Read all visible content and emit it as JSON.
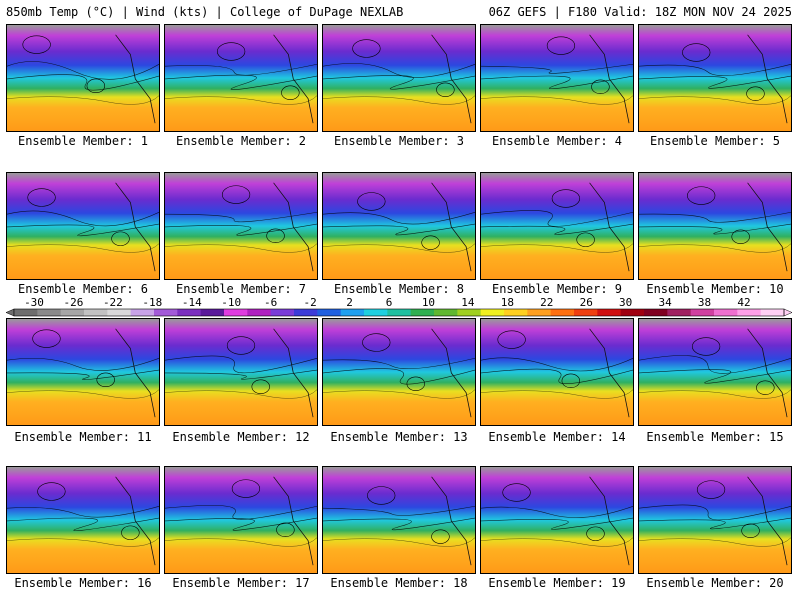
{
  "header": {
    "left": "850mb Temp (°C) | Wind (kts) | College of DuPage NEXLAB",
    "right": "06Z GEFS | F180 Valid: 18Z MON NOV 24 2025"
  },
  "members": [
    "Ensemble Member: 1",
    "Ensemble Member: 2",
    "Ensemble Member: 3",
    "Ensemble Member: 4",
    "Ensemble Member: 5",
    "Ensemble Member: 6",
    "Ensemble Member: 7",
    "Ensemble Member: 8",
    "Ensemble Member: 9",
    "Ensemble Member: 10",
    "Ensemble Member: 11",
    "Ensemble Member: 12",
    "Ensemble Member: 13",
    "Ensemble Member: 14",
    "Ensemble Member: 15",
    "Ensemble Member: 16",
    "Ensemble Member: 17",
    "Ensemble Member: 18",
    "Ensemble Member: 19",
    "Ensemble Member: 20"
  ],
  "colorbar": {
    "labels": [
      "-30",
      "-26",
      "-22",
      "-18",
      "-14",
      "-10",
      "-6",
      "-2",
      "2",
      "6",
      "10",
      "14",
      "18",
      "22",
      "26",
      "30",
      "34",
      "38",
      "42"
    ],
    "colors": [
      "#6e6e6e",
      "#8a8a8a",
      "#a6a6a6",
      "#c2c2c2",
      "#d9d9d9",
      "#c8a3e8",
      "#a35ad8",
      "#7b2fbf",
      "#5a1a9a",
      "#e03ce0",
      "#b020c0",
      "#7a3cd8",
      "#3c3cd8",
      "#2060e0",
      "#20a0f0",
      "#20d0e0",
      "#20c0a0",
      "#30b050",
      "#60b830",
      "#a0d020",
      "#f0f020",
      "#ffd020",
      "#ffa020",
      "#ff7010",
      "#f04010",
      "#d01010",
      "#a00010",
      "#800020",
      "#a02060",
      "#d040a0",
      "#f070d0",
      "#ffa0e8",
      "#ffd0f4"
    ]
  }
}
